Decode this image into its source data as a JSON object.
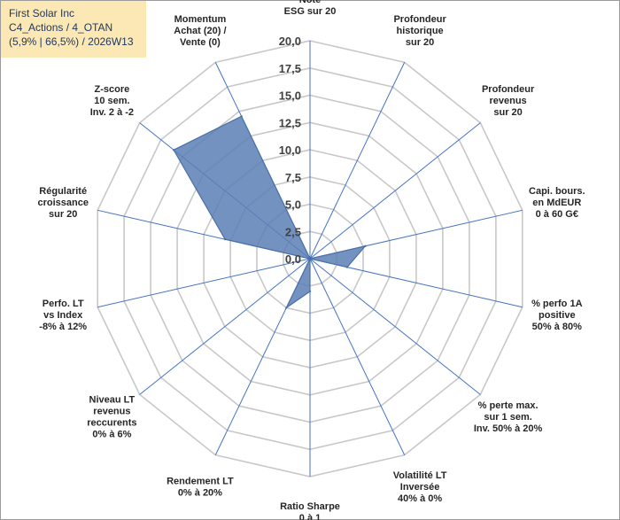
{
  "header": {
    "company": "First Solar Inc",
    "portfolio": "C4_Actions / 4_OTAN",
    "stats": "(5,9% | 66,5%) / 2026W13"
  },
  "chart_data": {
    "type": "radar",
    "rmin": 0,
    "rmax": 20,
    "ticks": [
      "0,0",
      "2,5",
      "5,0",
      "7,5",
      "10,0",
      "12,5",
      "15,0",
      "17,5",
      "20,0"
    ],
    "gridlines": true,
    "axes": [
      {
        "lines": [
          "Note",
          "ESG sur 20"
        ],
        "anchor": "middle"
      },
      {
        "lines": [
          "Profondeur",
          "historique",
          "sur 20"
        ],
        "anchor": "middle"
      },
      {
        "lines": [
          "Profondeur",
          "revenus",
          "sur 20"
        ],
        "anchor": "middle"
      },
      {
        "lines": [
          "Capi. bours.",
          "en MdEUR",
          "0 à 60 G€"
        ],
        "anchor": "middle"
      },
      {
        "lines": [
          "% perfo 1A",
          "positive",
          "50% à 80%"
        ],
        "anchor": "middle"
      },
      {
        "lines": [
          "% perte max.",
          "sur 1 sem.",
          "Inv. 50% à 20%"
        ],
        "anchor": "middle"
      },
      {
        "lines": [
          "Volatilité LT",
          "Inversée",
          "40% à 0%"
        ],
        "anchor": "middle"
      },
      {
        "lines": [
          "Ratio Sharpe",
          "0 à 1"
        ],
        "anchor": "middle"
      },
      {
        "lines": [
          "Rendement LT",
          "0% à 20%"
        ],
        "anchor": "middle"
      },
      {
        "lines": [
          "Niveau LT",
          "revenus",
          "reccurents",
          "0% à 6%"
        ],
        "anchor": "middle"
      },
      {
        "lines": [
          "Perfo. LT",
          "vs Index",
          "-8% à 12%"
        ],
        "anchor": "middle"
      },
      {
        "lines": [
          "Régularité",
          "croissance",
          "sur 20"
        ],
        "anchor": "middle"
      },
      {
        "lines": [
          "Z-score",
          "10 sem.",
          "Inv. 2 à -2"
        ],
        "anchor": "middle"
      },
      {
        "lines": [
          "Momentum",
          "Achat (20) /",
          "Vente (0)"
        ],
        "anchor": "middle"
      }
    ],
    "series": [
      {
        "name": "First Solar Inc",
        "values": [
          0,
          0,
          0,
          5.2,
          3.5,
          0,
          0,
          3.0,
          5.0,
          0,
          0,
          8.0,
          16.0,
          14.5
        ]
      }
    ],
    "colors": {
      "fill": "#5b7fb5",
      "stroke": "#4a70a8",
      "axis": "#4472c4",
      "grid": "#c8c8c8"
    }
  }
}
